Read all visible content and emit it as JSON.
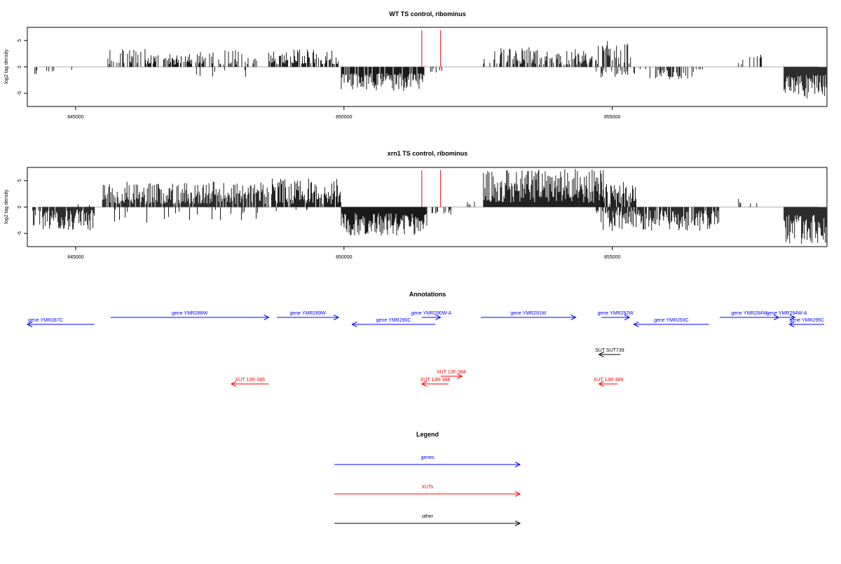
{
  "colors": {
    "gene": "#0000ff",
    "xut": "#ff0000",
    "other": "#000000",
    "cutoff": "#ff0000",
    "baseline": "#b0b0b0"
  },
  "chart_data": [
    {
      "type": "bar",
      "title": "WT TS control, ribominus",
      "xlabel": "",
      "ylabel": "log2 tag density",
      "xlim": [
        844100,
        859000
      ],
      "ylim": [
        -7.5,
        7.5
      ],
      "x_ticks": [
        845000,
        850000,
        855000
      ],
      "y_ticks": [
        -5,
        0,
        5
      ],
      "grid": false,
      "cutoffs_x": [
        851450,
        851800
      ],
      "segments": [
        {
          "x0": 844200,
          "x1": 844700,
          "ymin": 0.5,
          "ymax": 1.8,
          "sign": -1,
          "density": 0.12,
          "seed": 11
        },
        {
          "x0": 844900,
          "x1": 845300,
          "ymin": 0.4,
          "ymax": 3.5,
          "sign": -1,
          "density": 0.1,
          "seed": 12
        },
        {
          "x0": 845600,
          "x1": 846300,
          "ymin": 0.5,
          "ymax": 3.4,
          "sign": 1,
          "density": 0.5,
          "seed": 13
        },
        {
          "x0": 846300,
          "x1": 847300,
          "ymin": 0.4,
          "ymax": 2.6,
          "sign": 1,
          "density": 0.5,
          "seed": 14
        },
        {
          "x0": 847300,
          "x1": 848400,
          "ymin": 0.4,
          "ymax": 3.4,
          "sign": 1,
          "density": 0.45,
          "seed": 15
        },
        {
          "x0": 847200,
          "x1": 848300,
          "ymin": 0.4,
          "ymax": 2.5,
          "sign": -1,
          "density": 0.08,
          "seed": 16
        },
        {
          "x0": 848600,
          "x1": 849900,
          "ymin": 0.5,
          "ymax": 3.3,
          "sign": 1,
          "density": 0.7,
          "seed": 17
        },
        {
          "x0": 849950,
          "x1": 851500,
          "ymin": 1.2,
          "ymax": 4.6,
          "sign": -1,
          "density": 0.9,
          "seed": 18
        },
        {
          "x0": 851600,
          "x1": 851850,
          "ymin": 0.3,
          "ymax": 1.1,
          "sign": -1,
          "density": 0.2,
          "seed": 19
        },
        {
          "x0": 852600,
          "x1": 853500,
          "ymin": 0.5,
          "ymax": 3.8,
          "sign": 1,
          "density": 0.55,
          "seed": 20
        },
        {
          "x0": 853500,
          "x1": 854700,
          "ymin": 0.4,
          "ymax": 3.5,
          "sign": 1,
          "density": 0.55,
          "seed": 21
        },
        {
          "x0": 854700,
          "x1": 855350,
          "ymin": 0.5,
          "ymax": 5.0,
          "sign": 1,
          "density": 0.6,
          "seed": 22
        },
        {
          "x0": 854700,
          "x1": 855300,
          "ymin": 0.4,
          "ymax": 2.2,
          "sign": -1,
          "density": 0.25,
          "seed": 23
        },
        {
          "x0": 855400,
          "x1": 856700,
          "ymin": 0.4,
          "ymax": 2.4,
          "sign": -1,
          "density": 0.35,
          "seed": 24
        },
        {
          "x0": 857300,
          "x1": 857700,
          "ymin": 0.4,
          "ymax": 2.0,
          "sign": 1,
          "density": 0.08,
          "seed": 25
        },
        {
          "x0": 857700,
          "x1": 857800,
          "ymin": 0.5,
          "ymax": 3.2,
          "sign": 1,
          "density": 0.5,
          "seed": 26
        },
        {
          "x0": 858200,
          "x1": 859000,
          "ymin": 1.5,
          "ymax": 6.0,
          "sign": -1,
          "density": 1.0,
          "seed": 27
        }
      ]
    },
    {
      "type": "bar",
      "title": "xrn1 TS control, ribominus",
      "xlabel": "",
      "ylabel": "log2 tag density",
      "xlim": [
        844100,
        859000
      ],
      "ylim": [
        -7.5,
        7.5
      ],
      "x_ticks": [
        845000,
        850000,
        855000
      ],
      "y_ticks": [
        -5,
        0,
        5
      ],
      "grid": false,
      "cutoffs_x": [
        851450,
        851800
      ],
      "segments": [
        {
          "x0": 844200,
          "x1": 845350,
          "ymin": 0.5,
          "ymax": 4.4,
          "sign": -1,
          "density": 0.85,
          "seed": 31
        },
        {
          "x0": 844800,
          "x1": 845300,
          "ymin": 0.2,
          "ymax": 0.8,
          "sign": 1,
          "density": 0.1,
          "seed": 32
        },
        {
          "x0": 845500,
          "x1": 848600,
          "ymin": 0.6,
          "ymax": 4.8,
          "sign": 1,
          "density": 0.85,
          "seed": 33
        },
        {
          "x0": 845700,
          "x1": 848500,
          "ymin": 0.4,
          "ymax": 3.0,
          "sign": -1,
          "density": 0.12,
          "seed": 34
        },
        {
          "x0": 848650,
          "x1": 849950,
          "ymin": 0.6,
          "ymax": 5.6,
          "sign": 1,
          "density": 0.9,
          "seed": 35
        },
        {
          "x0": 848700,
          "x1": 849400,
          "ymin": 0.3,
          "ymax": 2.0,
          "sign": -1,
          "density": 0.1,
          "seed": 36
        },
        {
          "x0": 849950,
          "x1": 851550,
          "ymin": 1.2,
          "ymax": 5.4,
          "sign": -1,
          "density": 1.0,
          "seed": 37
        },
        {
          "x0": 851600,
          "x1": 852000,
          "ymin": 0.3,
          "ymax": 1.6,
          "sign": -1,
          "density": 0.25,
          "seed": 38
        },
        {
          "x0": 852300,
          "x1": 852450,
          "ymin": 0.3,
          "ymax": 1.1,
          "sign": 1,
          "density": 0.3,
          "seed": 39
        },
        {
          "x0": 852600,
          "x1": 854850,
          "ymin": 0.8,
          "ymax": 7.2,
          "sign": 1,
          "density": 1.0,
          "seed": 40
        },
        {
          "x0": 854800,
          "x1": 855450,
          "ymin": 0.6,
          "ymax": 4.8,
          "sign": 1,
          "density": 0.85,
          "seed": 41
        },
        {
          "x0": 854700,
          "x1": 857000,
          "ymin": 0.6,
          "ymax": 4.6,
          "sign": -1,
          "density": 0.85,
          "seed": 42
        },
        {
          "x0": 857300,
          "x1": 857800,
          "ymin": 0.4,
          "ymax": 2.0,
          "sign": 1,
          "density": 0.08,
          "seed": 43
        },
        {
          "x0": 858200,
          "x1": 859000,
          "ymin": 1.5,
          "ymax": 7.0,
          "sign": -1,
          "density": 1.0,
          "seed": 44
        }
      ]
    }
  ],
  "annotations": {
    "title": "Annotations",
    "items": [
      {
        "label": "gene YMR287C",
        "x0": 844100,
        "x1": 845350,
        "dir": "left",
        "row": 1,
        "kind": "gene"
      },
      {
        "label": "gene YMR288W",
        "x0": 845650,
        "x1": 848600,
        "dir": "right",
        "row": 0,
        "kind": "gene"
      },
      {
        "label": "gene YMR289W",
        "x0": 848750,
        "x1": 849900,
        "dir": "right",
        "row": 0,
        "kind": "gene"
      },
      {
        "label": "gene YMR290C",
        "x0": 850150,
        "x1": 851700,
        "dir": "left",
        "row": 1,
        "kind": "gene"
      },
      {
        "label": "gene YMR290W-A",
        "x0": 851450,
        "x1": 851800,
        "dir": "right",
        "row": 0,
        "kind": "gene"
      },
      {
        "label": "gene YMR291W",
        "x0": 852550,
        "x1": 854320,
        "dir": "right",
        "row": 0,
        "kind": "gene"
      },
      {
        "label": "gene YMR292W",
        "x0": 854800,
        "x1": 855320,
        "dir": "right",
        "row": 0,
        "kind": "gene"
      },
      {
        "label": "gene YMR293C",
        "x0": 855400,
        "x1": 856800,
        "dir": "left",
        "row": 1,
        "kind": "gene"
      },
      {
        "label": "gene YMR294W",
        "x0": 857000,
        "x1": 858100,
        "dir": "right",
        "row": 0,
        "kind": "gene"
      },
      {
        "label": "gene YMR294W-A",
        "x0": 858100,
        "x1": 858400,
        "dir": "right",
        "row": 0,
        "kind": "gene"
      },
      {
        "label": "gene YMR295C",
        "x0": 858300,
        "x1": 858950,
        "dir": "left",
        "row": 1,
        "kind": "gene"
      },
      {
        "label": "SUT SUT739",
        "x0": 854750,
        "x1": 855150,
        "dir": "left",
        "row": 2,
        "kind": "other"
      },
      {
        "label": "XUT 13F-384",
        "x0": 851800,
        "x1": 852200,
        "dir": "right",
        "row": 3,
        "kind": "xut"
      },
      {
        "label": "XUT 13R-385",
        "x0": 847900,
        "x1": 848600,
        "dir": "left",
        "row": 4,
        "kind": "xut"
      },
      {
        "label": "XUT 13R-388",
        "x0": 851450,
        "x1": 851950,
        "dir": "left",
        "row": 4,
        "kind": "xut"
      },
      {
        "label": "XUT 13R-389",
        "x0": 854750,
        "x1": 855100,
        "dir": "left",
        "row": 4,
        "kind": "xut"
      }
    ]
  },
  "legend": {
    "title": "Legend",
    "items": [
      {
        "label": "genes",
        "kind": "gene"
      },
      {
        "label": "XUTs",
        "kind": "xut"
      },
      {
        "label": "other",
        "kind": "other"
      }
    ]
  }
}
